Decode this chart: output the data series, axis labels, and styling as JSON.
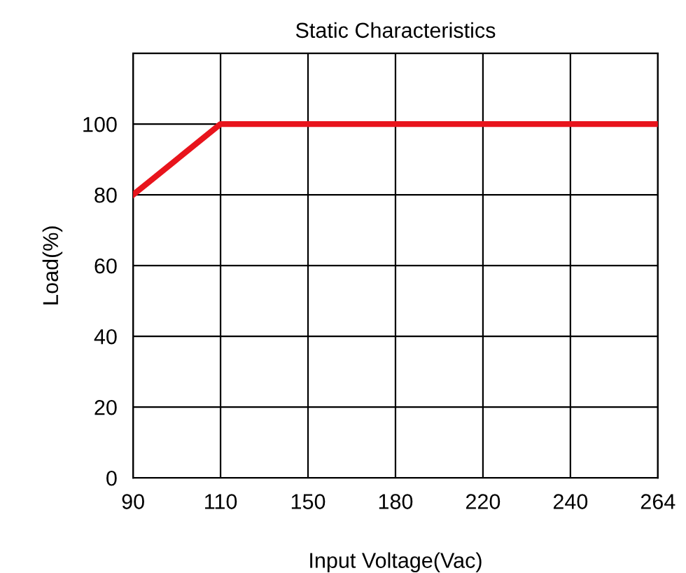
{
  "chart_data": {
    "type": "line",
    "title": "Static Characteristics",
    "xlabel": "Input Voltage(Vac)",
    "ylabel": "Load(%)",
    "categories": [
      "90",
      "110",
      "150",
      "180",
      "220",
      "240",
      "264"
    ],
    "series": [
      {
        "color": "#e8141c",
        "values": [
          80,
          100,
          100,
          100,
          100,
          100,
          100
        ]
      }
    ],
    "ylim": [
      0,
      120
    ],
    "yticks": [
      0,
      20,
      40,
      60,
      80,
      100
    ],
    "grid": true,
    "marker": "none",
    "line_style": "solid"
  }
}
